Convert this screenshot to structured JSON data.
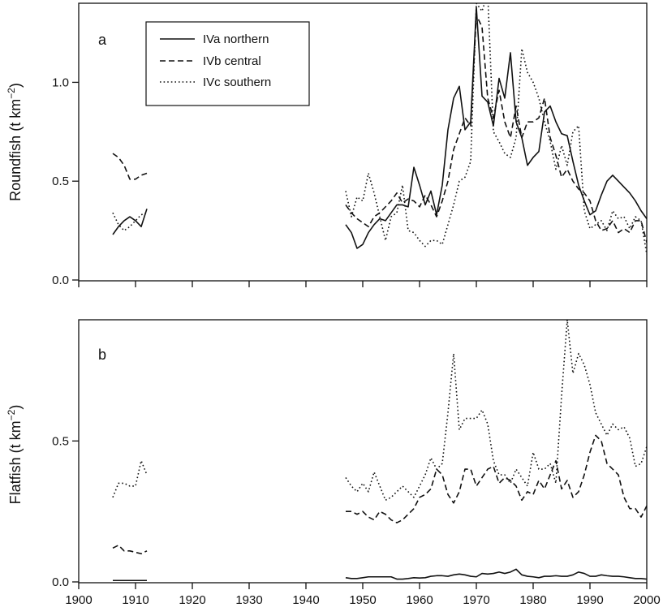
{
  "chart_data": [
    {
      "type": "line",
      "panel_label": "a",
      "ylabel": "Roundfish (t km",
      "ylabel_sup": "−2",
      "ylabel_tail": ")",
      "xlim": [
        1900,
        2000
      ],
      "ylim": [
        0,
        1.4
      ],
      "yticks": [
        0.0,
        0.5,
        1.0
      ],
      "ytick_labels": [
        "0.0",
        "0.5",
        "1.0"
      ],
      "legend_position": "top-left",
      "legend": [
        "IVa northern",
        "IVb central",
        "IVc southern"
      ],
      "series": [
        {
          "name": "IVa northern",
          "dash": "solid",
          "segments": [
            {
              "x": [
                1906,
                1907,
                1908,
                1909,
                1910,
                1911,
                1912
              ],
              "y": [
                0.23,
                0.27,
                0.3,
                0.32,
                0.3,
                0.27,
                0.36
              ]
            },
            {
              "x": [
                1947,
                1948,
                1949,
                1950,
                1951,
                1952,
                1953,
                1954,
                1955,
                1956,
                1957,
                1958,
                1959,
                1960,
                1961,
                1962,
                1963,
                1964,
                1965,
                1966,
                1967,
                1968,
                1969,
                1970,
                1971,
                1972,
                1973,
                1974,
                1975,
                1976,
                1977,
                1978,
                1979,
                1980,
                1981,
                1982,
                1983,
                1984,
                1985,
                1986,
                1987,
                1988,
                1989,
                1990,
                1991,
                1992,
                1993,
                1994,
                1995,
                1996,
                1997,
                1998,
                1999,
                2000
              ],
              "y": [
                0.28,
                0.24,
                0.16,
                0.18,
                0.24,
                0.28,
                0.31,
                0.3,
                0.34,
                0.38,
                0.38,
                0.37,
                0.57,
                0.48,
                0.38,
                0.45,
                0.33,
                0.48,
                0.76,
                0.92,
                0.98,
                0.76,
                0.8,
                1.38,
                0.93,
                0.9,
                0.78,
                1.02,
                0.92,
                1.15,
                0.8,
                0.72,
                0.58,
                0.62,
                0.65,
                0.85,
                0.88,
                0.8,
                0.74,
                0.73,
                0.6,
                0.48,
                0.4,
                0.33,
                0.35,
                0.43,
                0.5,
                0.53,
                0.5,
                0.47,
                0.44,
                0.4,
                0.35,
                0.31
              ]
            }
          ]
        },
        {
          "name": "IVb central",
          "dash": "dashed",
          "segments": [
            {
              "x": [
                1906,
                1907,
                1908,
                1909,
                1910,
                1911,
                1912
              ],
              "y": [
                0.64,
                0.62,
                0.58,
                0.51,
                0.51,
                0.53,
                0.54
              ]
            },
            {
              "x": [
                1947,
                1948,
                1949,
                1950,
                1951,
                1952,
                1953,
                1954,
                1955,
                1956,
                1957,
                1958,
                1959,
                1960,
                1961,
                1962,
                1963,
                1964,
                1965,
                1966,
                1967,
                1968,
                1969,
                1970,
                1971,
                1972,
                1973,
                1974,
                1975,
                1976,
                1977,
                1978,
                1979,
                1980,
                1981,
                1982,
                1983,
                1984,
                1985,
                1986,
                1987,
                1988,
                1989,
                1990,
                1991,
                1992,
                1993,
                1994,
                1995,
                1996,
                1997,
                1998,
                1999,
                2000
              ],
              "y": [
                0.38,
                0.34,
                0.31,
                0.29,
                0.27,
                0.32,
                0.34,
                0.37,
                0.4,
                0.44,
                0.39,
                0.41,
                0.4,
                0.37,
                0.43,
                0.38,
                0.32,
                0.4,
                0.5,
                0.66,
                0.74,
                0.82,
                0.78,
                1.34,
                1.28,
                0.92,
                0.82,
                0.96,
                0.8,
                0.72,
                0.88,
                0.72,
                0.8,
                0.8,
                0.82,
                0.92,
                0.72,
                0.63,
                0.52,
                0.56,
                0.5,
                0.46,
                0.44,
                0.4,
                0.3,
                0.25,
                0.26,
                0.3,
                0.24,
                0.26,
                0.24,
                0.3,
                0.3,
                0.19
              ]
            }
          ]
        },
        {
          "name": "IVc southern",
          "dash": "dotted",
          "segments": [
            {
              "x": [
                1906,
                1907,
                1908,
                1909,
                1910,
                1911,
                1912
              ],
              "y": [
                0.34,
                0.28,
                0.25,
                0.27,
                0.3,
                0.33,
                0.34
              ]
            },
            {
              "x": [
                1947,
                1948,
                1949,
                1950,
                1951,
                1952,
                1953,
                1954,
                1955,
                1956,
                1957,
                1958,
                1959,
                1960,
                1961,
                1962,
                1963,
                1964,
                1965,
                1966,
                1967,
                1968,
                1969,
                1970,
                1971,
                1972,
                1973,
                1974,
                1975,
                1976,
                1977,
                1978,
                1979,
                1980,
                1981,
                1982,
                1983,
                1984,
                1985,
                1986,
                1987,
                1988,
                1989,
                1990,
                1991,
                1992,
                1993,
                1994,
                1995,
                1996,
                1997,
                1998,
                1999,
                2000
              ],
              "y": [
                0.45,
                0.32,
                0.42,
                0.4,
                0.54,
                0.44,
                0.32,
                0.2,
                0.32,
                0.34,
                0.48,
                0.25,
                0.24,
                0.2,
                0.17,
                0.2,
                0.2,
                0.18,
                0.28,
                0.38,
                0.5,
                0.52,
                0.6,
                1.4,
                1.36,
                1.45,
                0.75,
                0.7,
                0.64,
                0.62,
                0.72,
                1.17,
                1.05,
                1.0,
                0.92,
                0.8,
                0.7,
                0.56,
                0.68,
                0.58,
                0.75,
                0.78,
                0.35,
                0.26,
                0.28,
                0.3,
                0.25,
                0.35,
                0.31,
                0.32,
                0.26,
                0.32,
                0.3,
                0.13
              ]
            }
          ]
        }
      ]
    },
    {
      "type": "line",
      "panel_label": "b",
      "ylabel": "Flatfish (t km",
      "ylabel_sup": "−2",
      "ylabel_tail": ")",
      "xlim": [
        1900,
        2000
      ],
      "ylim": [
        0,
        0.93
      ],
      "yticks": [
        0.0,
        0.5
      ],
      "ytick_labels": [
        "0.0",
        "0.5"
      ],
      "xticks": [
        1900,
        1910,
        1920,
        1930,
        1940,
        1950,
        1960,
        1970,
        1980,
        1990,
        2000
      ],
      "xtick_labels": [
        "1900",
        "1910",
        "1920",
        "1930",
        "1940",
        "1950",
        "1960",
        "1970",
        "1980",
        "1990",
        "2000"
      ],
      "series": [
        {
          "name": "IVa northern",
          "dash": "solid",
          "segments": [
            {
              "x": [
                1906,
                1907,
                1908,
                1909,
                1910,
                1911,
                1912
              ],
              "y": [
                0.005,
                0.005,
                0.005,
                0.005,
                0.005,
                0.005,
                0.005
              ]
            },
            {
              "x": [
                1947,
                1948,
                1949,
                1950,
                1951,
                1952,
                1953,
                1954,
                1955,
                1956,
                1957,
                1958,
                1959,
                1960,
                1961,
                1962,
                1963,
                1964,
                1965,
                1966,
                1967,
                1968,
                1969,
                1970,
                1971,
                1972,
                1973,
                1974,
                1975,
                1976,
                1977,
                1978,
                1979,
                1980,
                1981,
                1982,
                1983,
                1984,
                1985,
                1986,
                1987,
                1988,
                1989,
                1990,
                1991,
                1992,
                1993,
                1994,
                1995,
                1996,
                1997,
                1998,
                1999,
                2000
              ],
              "y": [
                0.015,
                0.012,
                0.012,
                0.015,
                0.018,
                0.018,
                0.018,
                0.018,
                0.018,
                0.01,
                0.01,
                0.012,
                0.015,
                0.014,
                0.015,
                0.02,
                0.022,
                0.022,
                0.02,
                0.025,
                0.028,
                0.025,
                0.02,
                0.018,
                0.03,
                0.028,
                0.03,
                0.035,
                0.03,
                0.035,
                0.045,
                0.025,
                0.02,
                0.018,
                0.015,
                0.02,
                0.02,
                0.022,
                0.02,
                0.02,
                0.025,
                0.035,
                0.03,
                0.02,
                0.02,
                0.025,
                0.022,
                0.02,
                0.02,
                0.018,
                0.015,
                0.012,
                0.012,
                0.01
              ]
            }
          ]
        },
        {
          "name": "IVb central",
          "dash": "dashed",
          "segments": [
            {
              "x": [
                1906,
                1907,
                1908,
                1909,
                1910,
                1911,
                1912
              ],
              "y": [
                0.12,
                0.13,
                0.11,
                0.11,
                0.105,
                0.1,
                0.11
              ]
            },
            {
              "x": [
                1947,
                1948,
                1949,
                1950,
                1951,
                1952,
                1953,
                1954,
                1955,
                1956,
                1957,
                1958,
                1959,
                1960,
                1961,
                1962,
                1963,
                1964,
                1965,
                1966,
                1967,
                1968,
                1969,
                1970,
                1971,
                1972,
                1973,
                1974,
                1975,
                1976,
                1977,
                1978,
                1979,
                1980,
                1981,
                1982,
                1983,
                1984,
                1985,
                1986,
                1987,
                1988,
                1989,
                1990,
                1991,
                1992,
                1993,
                1994,
                1995,
                1996,
                1997,
                1998,
                1999,
                2000
              ],
              "y": [
                0.25,
                0.25,
                0.24,
                0.25,
                0.23,
                0.22,
                0.25,
                0.24,
                0.22,
                0.21,
                0.22,
                0.24,
                0.26,
                0.3,
                0.31,
                0.33,
                0.4,
                0.38,
                0.31,
                0.28,
                0.32,
                0.4,
                0.4,
                0.34,
                0.37,
                0.4,
                0.41,
                0.35,
                0.37,
                0.36,
                0.34,
                0.29,
                0.32,
                0.31,
                0.36,
                0.33,
                0.38,
                0.43,
                0.33,
                0.36,
                0.3,
                0.32,
                0.38,
                0.46,
                0.52,
                0.5,
                0.42,
                0.4,
                0.38,
                0.3,
                0.26,
                0.26,
                0.23,
                0.27
              ]
            }
          ]
        },
        {
          "name": "IVc southern",
          "dash": "dotted",
          "segments": [
            {
              "x": [
                1906,
                1907,
                1908,
                1909,
                1910,
                1911,
                1912
              ],
              "y": [
                0.3,
                0.35,
                0.35,
                0.34,
                0.34,
                0.43,
                0.38
              ]
            },
            {
              "x": [
                1947,
                1948,
                1949,
                1950,
                1951,
                1952,
                1953,
                1954,
                1955,
                1956,
                1957,
                1958,
                1959,
                1960,
                1961,
                1962,
                1963,
                1964,
                1965,
                1966,
                1967,
                1968,
                1969,
                1970,
                1971,
                1972,
                1973,
                1974,
                1975,
                1976,
                1977,
                1978,
                1979,
                1980,
                1981,
                1982,
                1983,
                1984,
                1985,
                1986,
                1987,
                1988,
                1989,
                1990,
                1991,
                1992,
                1993,
                1994,
                1995,
                1996,
                1997,
                1998,
                1999,
                2000
              ],
              "y": [
                0.37,
                0.34,
                0.32,
                0.35,
                0.32,
                0.39,
                0.34,
                0.29,
                0.3,
                0.32,
                0.34,
                0.32,
                0.3,
                0.34,
                0.38,
                0.44,
                0.4,
                0.42,
                0.6,
                0.81,
                0.54,
                0.58,
                0.58,
                0.58,
                0.61,
                0.56,
                0.43,
                0.38,
                0.38,
                0.35,
                0.4,
                0.37,
                0.34,
                0.46,
                0.4,
                0.4,
                0.42,
                0.35,
                0.66,
                0.93,
                0.74,
                0.81,
                0.77,
                0.7,
                0.6,
                0.56,
                0.52,
                0.56,
                0.54,
                0.55,
                0.51,
                0.41,
                0.42,
                0.48
              ]
            }
          ]
        }
      ]
    }
  ]
}
